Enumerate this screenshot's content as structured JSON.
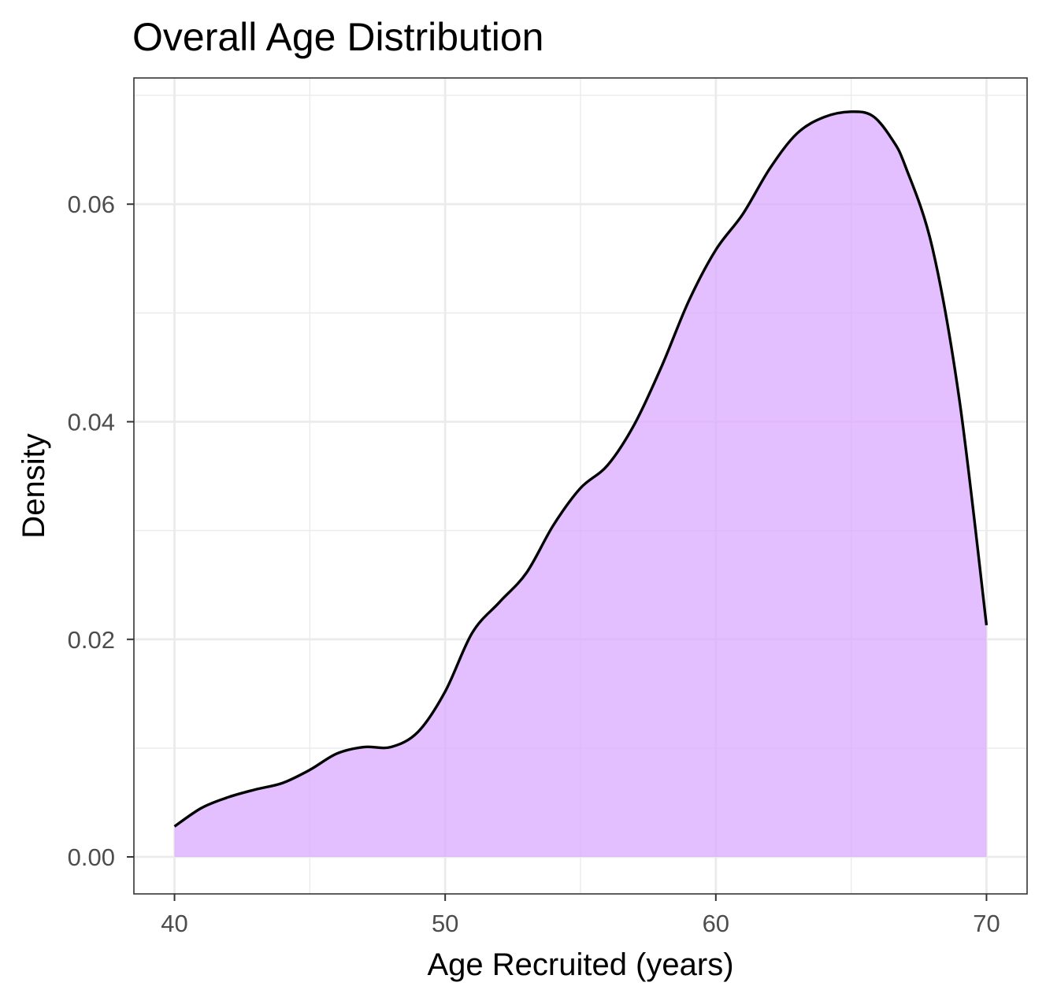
{
  "chart_data": {
    "type": "area",
    "title": "Overall Age Distribution",
    "xlabel": "Age Recruited (years)",
    "ylabel": "Density",
    "xlim": [
      38.5,
      71.5
    ],
    "ylim": [
      -0.0034,
      0.0716
    ],
    "x_ticks": [
      40,
      50,
      60,
      70
    ],
    "x_tick_labels": [
      "40",
      "50",
      "60",
      "70"
    ],
    "y_ticks": [
      0.0,
      0.02,
      0.04,
      0.06
    ],
    "y_tick_labels": [
      "0.00",
      "0.02",
      "0.04",
      "0.06"
    ],
    "grid": true,
    "legend": "none",
    "series": [
      {
        "x": [
          40,
          41,
          42,
          43,
          44,
          45,
          46,
          47,
          48,
          49,
          50,
          51,
          52,
          53,
          54,
          55,
          56,
          57,
          58,
          59,
          60,
          61,
          62,
          63,
          64,
          65,
          65.8,
          66.5,
          67,
          68,
          69,
          70
        ],
        "y": [
          0.0028,
          0.0045,
          0.0055,
          0.0062,
          0.0068,
          0.008,
          0.0095,
          0.0101,
          0.0101,
          0.0115,
          0.0152,
          0.0206,
          0.0234,
          0.0261,
          0.0305,
          0.0339,
          0.036,
          0.0398,
          0.0451,
          0.0511,
          0.0558,
          0.0591,
          0.0633,
          0.0665,
          0.068,
          0.0685,
          0.0681,
          0.066,
          0.0635,
          0.056,
          0.042,
          0.0213
        ]
      }
    ],
    "colors": {
      "fill": "#d9a6ff",
      "line": "#000000",
      "grid": "#ebebeb",
      "panel_border": "#333333",
      "tick_text": "#4d4d4d"
    }
  }
}
